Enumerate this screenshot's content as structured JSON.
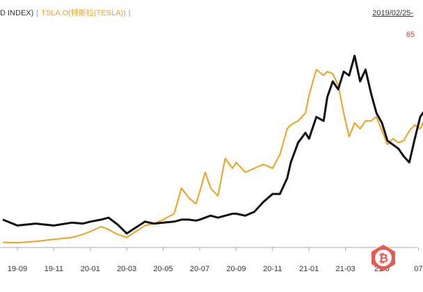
{
  "legend": {
    "index_label": "D INDEX)",
    "separator": "|",
    "tsla_label": "TSLA.O(特斯拉(TESLA))",
    "tsla_trailing_separator": "|"
  },
  "date_label": "2019/02/25-",
  "value_label": "65",
  "colors": {
    "index_series": "#111111",
    "tsla_series": "#f0a020",
    "watermark": "#e85a4f",
    "value_label": "#d04040"
  },
  "watermark_icon": "bitcoin-logo-icon",
  "chart_data": {
    "type": "line",
    "title": "",
    "xlabel": "",
    "ylabel": "",
    "x_ticks": [
      "19-09",
      "19-11",
      "20-01",
      "20-03",
      "20-05",
      "20-07",
      "20-09",
      "20-11",
      "21-01",
      "21-03",
      "21-0",
      "07"
    ],
    "x_tick_positions": [
      0,
      2,
      4,
      6,
      8,
      10,
      12,
      14,
      16,
      18,
      20,
      22
    ],
    "ylim": [
      0,
      100
    ],
    "grid": false,
    "legend_position": "top-left",
    "series": [
      {
        "name": "TSLA.O(特斯拉(TESLA))",
        "color": "#f0a020",
        "x": [
          -0.8,
          0,
          1,
          2,
          3,
          3.6,
          4,
          4.6,
          5,
          5.5,
          6,
          6.5,
          7,
          7.5,
          8,
          8.6,
          9,
          9.4,
          9.8,
          10,
          10.3,
          10.6,
          11,
          11.4,
          11.8,
          12,
          12.5,
          13,
          13.5,
          14,
          14.4,
          14.8,
          15,
          15.4,
          15.8,
          16,
          16.4,
          16.8,
          17,
          17.3,
          17.6,
          17.9,
          18.2,
          18.5,
          18.8,
          19.1,
          19.4,
          19.7,
          20,
          20.3,
          20.6,
          20.9,
          21.2,
          21.5,
          21.8,
          22.1,
          22.4
        ],
        "y": [
          0.5,
          0.3,
          1.0,
          2.0,
          3.0,
          4.5,
          6.0,
          8.5,
          7.0,
          4.5,
          3.0,
          6.0,
          9.0,
          10.0,
          12.0,
          15.0,
          28.0,
          23.0,
          20.0,
          26.0,
          36.0,
          28.0,
          24.0,
          43.0,
          38.0,
          41.0,
          36.0,
          38.0,
          40.0,
          38.0,
          45.0,
          58.0,
          60.0,
          62.0,
          66.0,
          75.0,
          88.0,
          85.0,
          87.0,
          86.0,
          80.0,
          66.0,
          54.0,
          61.0,
          58.0,
          62.0,
          62.0,
          64.0,
          57.0,
          50.0,
          53.0,
          51.0,
          52.0,
          57.0,
          60.0,
          58.0,
          64.0
        ]
      },
      {
        "name": "D INDEX)",
        "color": "#111111",
        "x": [
          -0.8,
          0,
          1,
          2,
          3,
          3.6,
          4,
          4.6,
          5,
          5.5,
          6,
          6.5,
          7,
          7.5,
          8,
          8.6,
          9,
          9.4,
          9.8,
          10,
          10.3,
          10.6,
          11,
          11.4,
          11.8,
          12,
          12.5,
          13,
          13.5,
          14,
          14.4,
          14.8,
          15,
          15.4,
          15.8,
          16,
          16.4,
          16.8,
          17,
          17.3,
          17.6,
          17.9,
          18.2,
          18.5,
          18.8,
          19.1,
          19.4,
          19.7,
          20,
          20.3,
          20.6,
          20.9,
          21.2,
          21.5,
          21.8,
          22.1,
          22.4
        ],
        "y": [
          12.0,
          9.0,
          10.0,
          9.0,
          10.5,
          10.0,
          11.0,
          12.0,
          13.0,
          9.5,
          5.0,
          8.0,
          11.0,
          10.0,
          10.5,
          11.0,
          12.0,
          12.0,
          11.5,
          12.0,
          13.0,
          14.0,
          13.0,
          14.0,
          15.0,
          15.0,
          14.0,
          16.0,
          21.0,
          25.0,
          25.0,
          33.0,
          41.0,
          51.0,
          56.0,
          53.0,
          64.0,
          62.0,
          74.0,
          82.0,
          78.0,
          87.0,
          85.0,
          95.0,
          82.0,
          88.0,
          76.0,
          66.0,
          61.0,
          52.0,
          50.0,
          48.0,
          44.0,
          41.0,
          53.0,
          64.0,
          68.0
        ]
      }
    ]
  }
}
